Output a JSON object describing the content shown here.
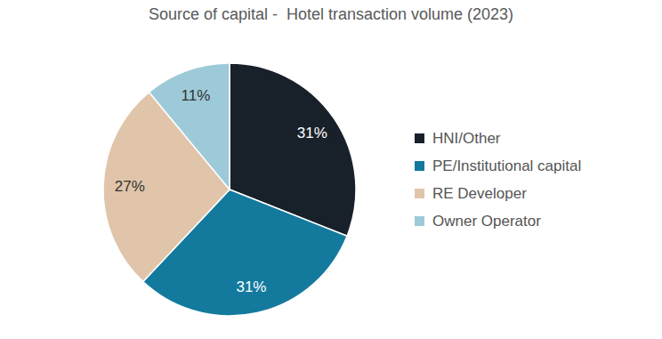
{
  "chart_data": {
    "type": "pie",
    "title": "Source of capital -  Hotel transaction volume (2023)",
    "categories": [
      "HNI/Other",
      "PE/Institutional capital",
      "RE Developer",
      "Owner Operator"
    ],
    "values": [
      31,
      31,
      27,
      11
    ],
    "value_labels": [
      "31%",
      "31%",
      "27%",
      "11%"
    ],
    "colors": [
      "#18202a",
      "#137a9e",
      "#e0c5ab",
      "#9dcad8"
    ],
    "data_labels": true,
    "legend": "right"
  }
}
